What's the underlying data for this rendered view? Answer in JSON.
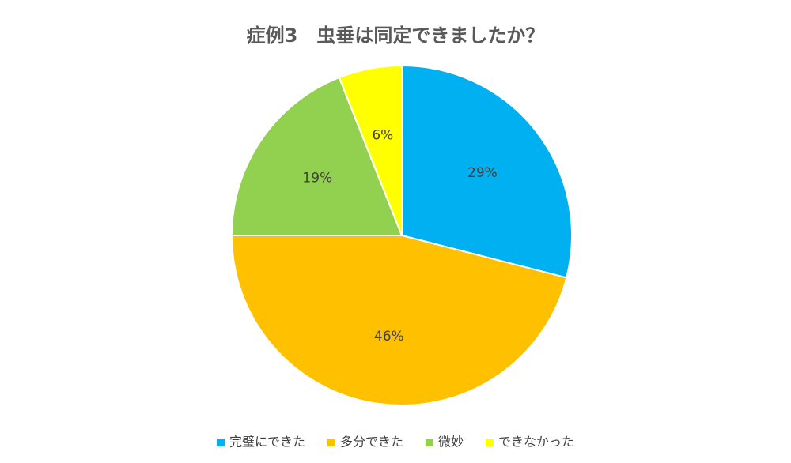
{
  "chart_data": {
    "type": "pie",
    "title": "症例3　虫垂は同定できましたか？",
    "categories": [
      "完璧にできた",
      "多分できた",
      "微妙",
      "できなかった"
    ],
    "values": [
      29,
      46,
      19,
      6
    ],
    "value_labels": [
      "29%",
      "46%",
      "19%",
      "6%"
    ],
    "colors": [
      "#00b0f0",
      "#ffc000",
      "#92d050",
      "#ffff00"
    ],
    "legend": "bottom"
  }
}
